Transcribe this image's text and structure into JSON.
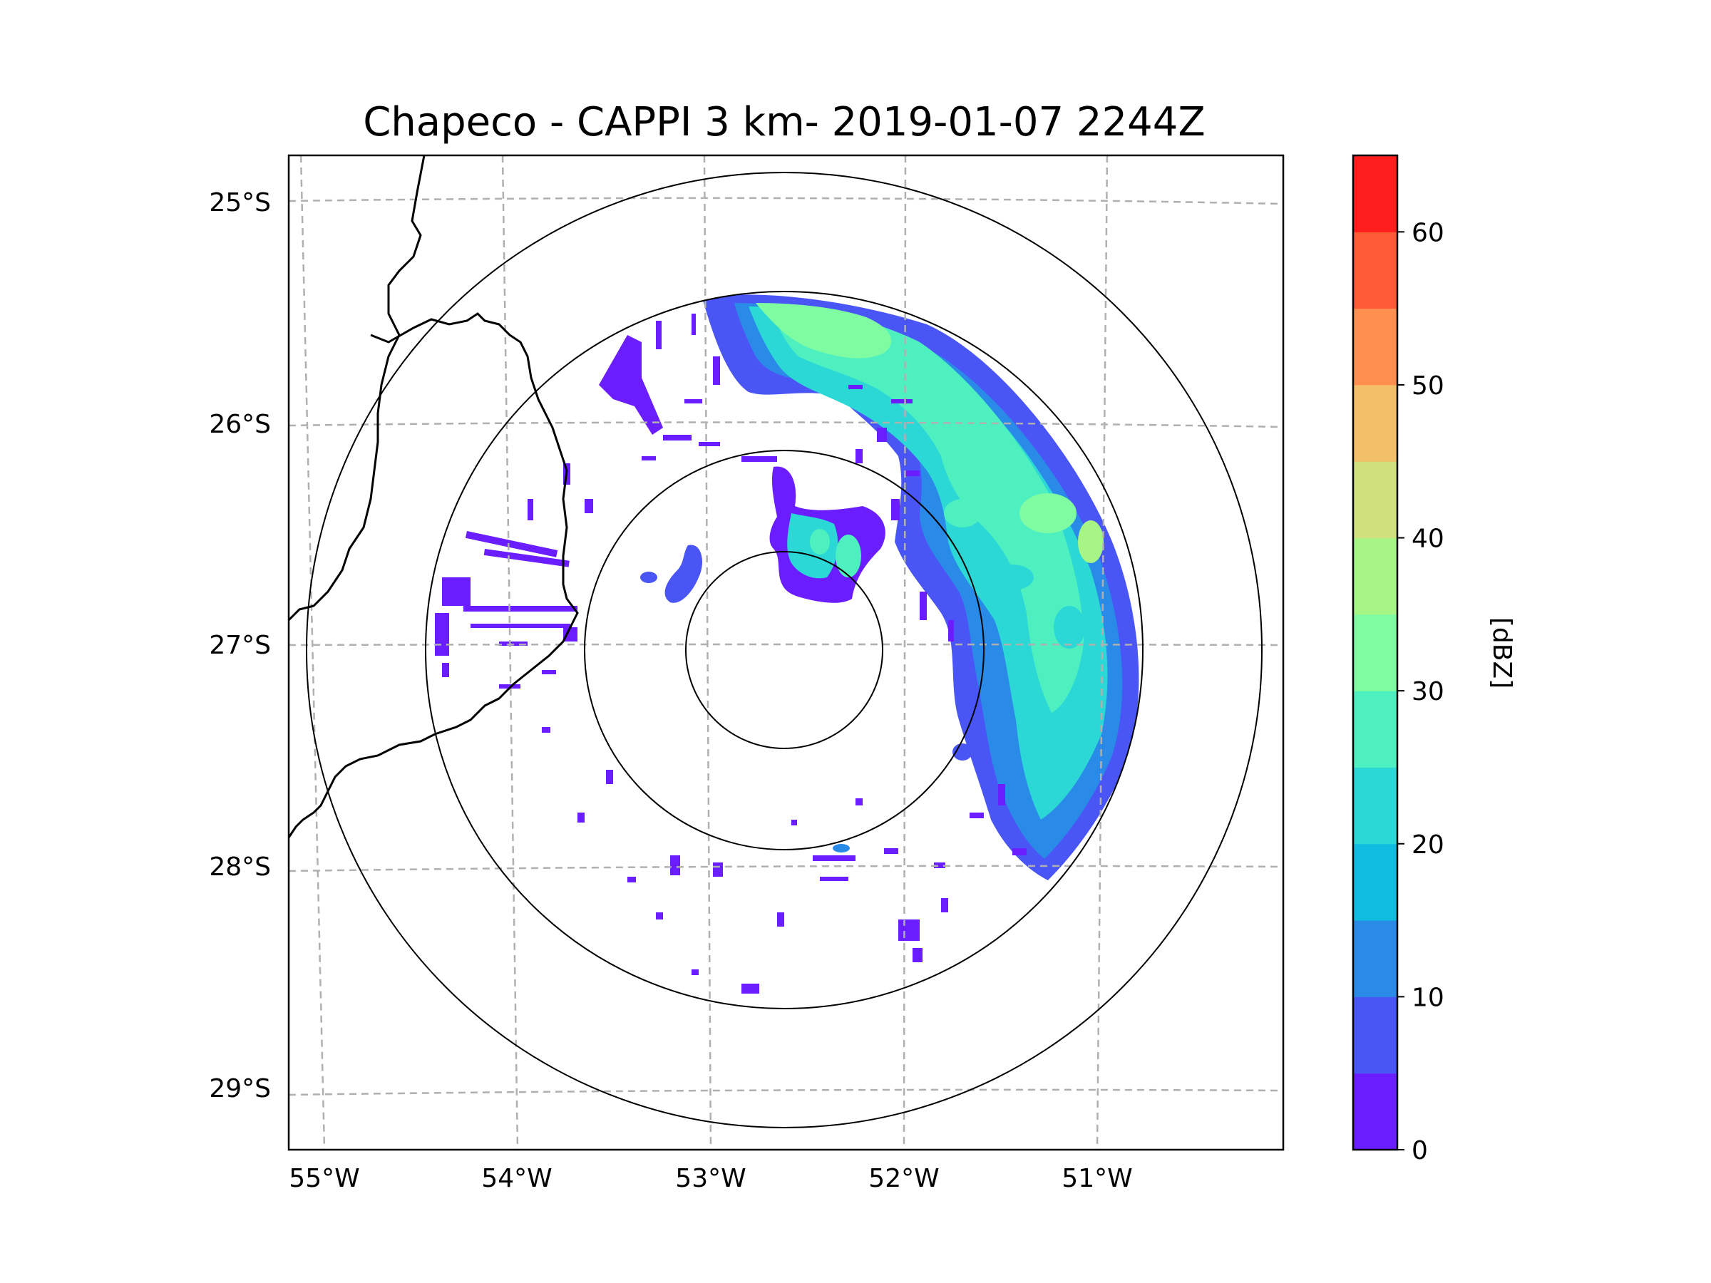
{
  "chart_data": {
    "type": "map",
    "title": "Chapeco - CAPPI 3 km- 2019-01-07 2244Z",
    "lat_labels": [
      "25°S",
      "26°S",
      "27°S",
      "28°S",
      "29°S"
    ],
    "lon_labels": [
      "55°W",
      "54°W",
      "53°W",
      "52°W",
      "51°W"
    ],
    "colorbar": {
      "label": "[dBZ]",
      "min": 0,
      "max": 65,
      "tick_values": [
        0,
        10,
        20,
        30,
        40,
        50,
        60
      ],
      "tick_labels": [
        "0",
        "10",
        "20",
        "30",
        "40",
        "50",
        "60"
      ],
      "levels": [
        0,
        5,
        10,
        15,
        20,
        25,
        30,
        35,
        40,
        45,
        50,
        55,
        60,
        65
      ],
      "colors": [
        "#6a1eff",
        "#4a55f5",
        "#2a8ae8",
        "#10bde0",
        "#2cd8d6",
        "#4ef0c0",
        "#7ffca2",
        "#a6f585",
        "#d0e07c",
        "#f2c068",
        "#ff9050",
        "#ff5a38",
        "#ff1e1e"
      ]
    },
    "range_rings": 4,
    "grid": true
  }
}
